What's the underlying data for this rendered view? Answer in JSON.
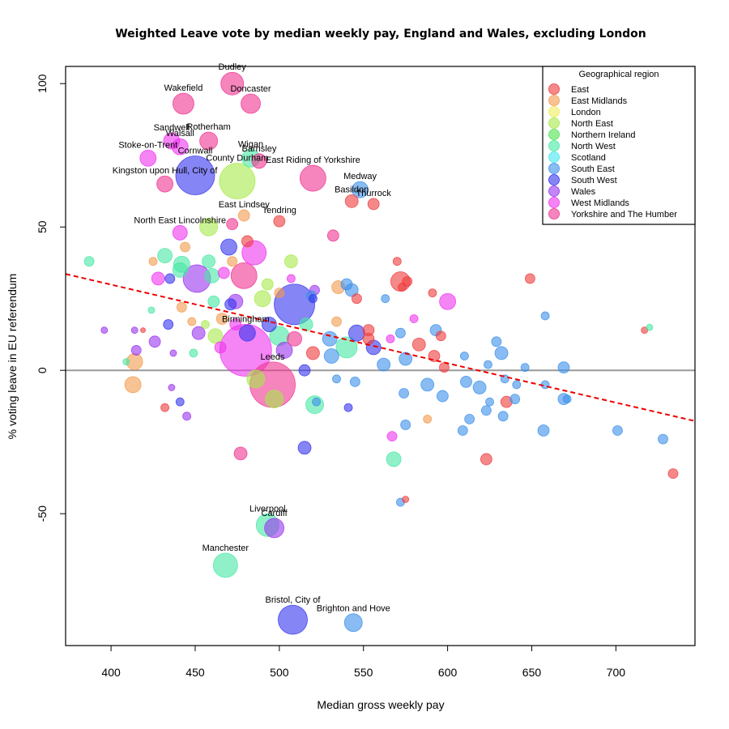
{
  "chart_data": {
    "type": "scatter",
    "title": "Weighted Leave vote by median weekly pay, England and Wales, excluding London",
    "xlabel": "Median gross weekly pay",
    "ylabel": "% voting leave in EU referendum",
    "xlim": [
      373,
      747
    ],
    "ylim": [
      -96,
      106
    ],
    "xticks": [
      400,
      450,
      500,
      550,
      600,
      650,
      700
    ],
    "yticks": [
      -50,
      0,
      50,
      100
    ],
    "zero_line": 0,
    "trend_line": {
      "x": [
        373,
        747
      ],
      "y": [
        33.6,
        -17.7
      ],
      "color": "#ee0000",
      "style": "dashed"
    },
    "legend": {
      "title": "Geographical region",
      "position": "top-right",
      "entries": [
        {
          "name": "East",
          "color": "#ee3b3b"
        },
        {
          "name": "East Midlands",
          "color": "#f39b4c"
        },
        {
          "name": "London",
          "color": "#f0ec5a"
        },
        {
          "name": "North East",
          "color": "#a6ea4a"
        },
        {
          "name": "Northern Ireland",
          "color": "#4fe34f"
        },
        {
          "name": "North West",
          "color": "#46e8a4"
        },
        {
          "name": "Scotland",
          "color": "#44e8ee"
        },
        {
          "name": "South East",
          "color": "#3b8fea"
        },
        {
          "name": "South West",
          "color": "#3434ee"
        },
        {
          "name": "Wales",
          "color": "#9a34ee"
        },
        {
          "name": "West Midlands",
          "color": "#ee34ee"
        },
        {
          "name": "Yorkshire and The Humber",
          "color": "#ee3490"
        }
      ]
    },
    "points": [
      {
        "x": 472,
        "y": 100,
        "r": 14,
        "region": "Yorkshire and The Humber",
        "label": "Dudley"
      },
      {
        "x": 443,
        "y": 93,
        "r": 13,
        "region": "Yorkshire and The Humber",
        "label": "Wakefield"
      },
      {
        "x": 483,
        "y": 93,
        "r": 12,
        "region": "Yorkshire and The Humber",
        "label": "Doncaster"
      },
      {
        "x": 436,
        "y": 80,
        "r": 10,
        "region": "West Midlands",
        "label": "Sandwell"
      },
      {
        "x": 458,
        "y": 80,
        "r": 11,
        "region": "Yorkshire and The Humber",
        "label": "Rotherham"
      },
      {
        "x": 441,
        "y": 78,
        "r": 10,
        "region": "West Midlands",
        "label": "Walsall"
      },
      {
        "x": 422,
        "y": 74,
        "r": 10,
        "region": "West Midlands",
        "label": "Stoke-on-Trent"
      },
      {
        "x": 483,
        "y": 74,
        "r": 11,
        "region": "North West",
        "label": "Wigan"
      },
      {
        "x": 488,
        "y": 73,
        "r": 9,
        "region": "Yorkshire and The Humber",
        "label": "Barnsley"
      },
      {
        "x": 450,
        "y": 68,
        "r": 24,
        "region": "South West",
        "label": "Cornwall"
      },
      {
        "x": 475,
        "y": 66,
        "r": 22,
        "region": "North East",
        "label": "County Durham"
      },
      {
        "x": 520,
        "y": 67,
        "r": 16,
        "region": "Yorkshire and The Humber",
        "label": "East Riding of Yorkshire"
      },
      {
        "x": 432,
        "y": 65,
        "r": 10,
        "region": "Yorkshire and The Humber",
        "label": "Kingston upon Hull, City of"
      },
      {
        "x": 548,
        "y": 63,
        "r": 10,
        "region": "South East",
        "label": "Medway"
      },
      {
        "x": 543,
        "y": 59,
        "r": 8,
        "region": "East",
        "label": "Basildon"
      },
      {
        "x": 556,
        "y": 58,
        "r": 7,
        "region": "East",
        "label": "Thurrock"
      },
      {
        "x": 479,
        "y": 54,
        "r": 7,
        "region": "East Midlands",
        "label": "East Lindsey"
      },
      {
        "x": 500,
        "y": 52,
        "r": 7,
        "region": "East",
        "label": "Tendring"
      },
      {
        "x": 441,
        "y": 48,
        "r": 9,
        "region": "West Midlands",
        "label": "North East Lincolnshire"
      },
      {
        "x": 458,
        "y": 50,
        "r": 11,
        "region": "North East"
      },
      {
        "x": 472,
        "y": 51,
        "r": 7,
        "region": "Yorkshire and The Humber"
      },
      {
        "x": 532,
        "y": 47,
        "r": 7,
        "region": "Yorkshire and The Humber"
      },
      {
        "x": 481,
        "y": 45,
        "r": 7,
        "region": "East"
      },
      {
        "x": 444,
        "y": 43,
        "r": 6,
        "region": "East Midlands"
      },
      {
        "x": 470,
        "y": 43,
        "r": 10,
        "region": "South West"
      },
      {
        "x": 485,
        "y": 41,
        "r": 15,
        "region": "West Midlands"
      },
      {
        "x": 432,
        "y": 40,
        "r": 9,
        "region": "North West"
      },
      {
        "x": 442,
        "y": 37,
        "r": 10,
        "region": "North West"
      },
      {
        "x": 458,
        "y": 38,
        "r": 8,
        "region": "North West"
      },
      {
        "x": 507,
        "y": 38,
        "r": 8,
        "region": "North East"
      },
      {
        "x": 472,
        "y": 38,
        "r": 6,
        "region": "East Midlands"
      },
      {
        "x": 425,
        "y": 38,
        "r": 5,
        "region": "East Midlands"
      },
      {
        "x": 387,
        "y": 38,
        "r": 6,
        "region": "North West"
      },
      {
        "x": 441,
        "y": 35,
        "r": 9,
        "region": "North West"
      },
      {
        "x": 467,
        "y": 34,
        "r": 7,
        "region": "West Midlands"
      },
      {
        "x": 479,
        "y": 33,
        "r": 16,
        "region": "Yorkshire and The Humber"
      },
      {
        "x": 451,
        "y": 32,
        "r": 17,
        "region": "Wales"
      },
      {
        "x": 428,
        "y": 32,
        "r": 8,
        "region": "West Midlands"
      },
      {
        "x": 435,
        "y": 32,
        "r": 6,
        "region": "South West"
      },
      {
        "x": 460,
        "y": 33,
        "r": 9,
        "region": "North West"
      },
      {
        "x": 493,
        "y": 30,
        "r": 7,
        "region": "North East"
      },
      {
        "x": 507,
        "y": 32,
        "r": 5,
        "region": "West Midlands"
      },
      {
        "x": 570,
        "y": 38,
        "r": 5,
        "region": "East"
      },
      {
        "x": 572,
        "y": 31,
        "r": 12,
        "region": "East"
      },
      {
        "x": 576,
        "y": 31,
        "r": 6,
        "region": "East"
      },
      {
        "x": 649,
        "y": 32,
        "r": 6,
        "region": "East"
      },
      {
        "x": 600,
        "y": 24,
        "r": 10,
        "region": "West Midlands"
      },
      {
        "x": 540,
        "y": 30,
        "r": 7,
        "region": "South East"
      },
      {
        "x": 535,
        "y": 29,
        "r": 8,
        "region": "East Midlands"
      },
      {
        "x": 543,
        "y": 28,
        "r": 8,
        "region": "South East"
      },
      {
        "x": 521,
        "y": 28,
        "r": 6,
        "region": "Wales"
      },
      {
        "x": 500,
        "y": 27,
        "r": 6,
        "region": "East Midlands"
      },
      {
        "x": 519,
        "y": 26,
        "r": 6,
        "region": "South East"
      },
      {
        "x": 509,
        "y": 23,
        "r": 25,
        "region": "South West"
      },
      {
        "x": 520,
        "y": 25,
        "r": 5,
        "region": "South West"
      },
      {
        "x": 490,
        "y": 25,
        "r": 10,
        "region": "North East"
      },
      {
        "x": 474,
        "y": 24,
        "r": 9,
        "region": "Wales"
      },
      {
        "x": 461,
        "y": 24,
        "r": 7,
        "region": "North West"
      },
      {
        "x": 442,
        "y": 22,
        "r": 6,
        "region": "East Midlands"
      },
      {
        "x": 424,
        "y": 21,
        "r": 4,
        "region": "North West"
      },
      {
        "x": 471,
        "y": 23,
        "r": 7,
        "region": "South West"
      },
      {
        "x": 546,
        "y": 25,
        "r": 6,
        "region": "East"
      },
      {
        "x": 573,
        "y": 29,
        "r": 5,
        "region": "East"
      },
      {
        "x": 563,
        "y": 25,
        "r": 5,
        "region": "South East"
      },
      {
        "x": 591,
        "y": 27,
        "r": 5,
        "region": "East"
      },
      {
        "x": 658,
        "y": 19,
        "r": 5,
        "region": "South East"
      },
      {
        "x": 580,
        "y": 18,
        "r": 5,
        "region": "West Midlands"
      },
      {
        "x": 534,
        "y": 17,
        "r": 6,
        "region": "East Midlands"
      },
      {
        "x": 466,
        "y": 18,
        "r": 7,
        "region": "East Midlands"
      },
      {
        "x": 448,
        "y": 17,
        "r": 5,
        "region": "East Midlands"
      },
      {
        "x": 434,
        "y": 16,
        "r": 6,
        "region": "South West"
      },
      {
        "x": 456,
        "y": 16,
        "r": 5,
        "region": "North East"
      },
      {
        "x": 474,
        "y": 16,
        "r": 7,
        "region": "West Midlands"
      },
      {
        "x": 494,
        "y": 16,
        "r": 9,
        "region": "South West"
      },
      {
        "x": 516,
        "y": 16,
        "r": 8,
        "region": "North West"
      },
      {
        "x": 546,
        "y": 13,
        "r": 10,
        "region": "South West"
      },
      {
        "x": 553,
        "y": 14,
        "r": 7,
        "region": "East"
      },
      {
        "x": 572,
        "y": 13,
        "r": 6,
        "region": "South East"
      },
      {
        "x": 593,
        "y": 14,
        "r": 7,
        "region": "South East"
      },
      {
        "x": 596,
        "y": 12,
        "r": 6,
        "region": "East"
      },
      {
        "x": 717,
        "y": 14,
        "r": 4,
        "region": "East"
      },
      {
        "x": 720,
        "y": 15,
        "r": 4,
        "region": "North West"
      },
      {
        "x": 414,
        "y": 14,
        "r": 4,
        "region": "Wales"
      },
      {
        "x": 396,
        "y": 14,
        "r": 4,
        "region": "Wales"
      },
      {
        "x": 419,
        "y": 14,
        "r": 3,
        "region": "East"
      },
      {
        "x": 452,
        "y": 13,
        "r": 8,
        "region": "Wales"
      },
      {
        "x": 462,
        "y": 12,
        "r": 9,
        "region": "North East"
      },
      {
        "x": 481,
        "y": 13,
        "r": 10,
        "region": "South West"
      },
      {
        "x": 500,
        "y": 12,
        "r": 12,
        "region": "North West"
      },
      {
        "x": 509,
        "y": 11,
        "r": 9,
        "region": "Yorkshire and The Humber"
      },
      {
        "x": 530,
        "y": 11,
        "r": 9,
        "region": "South East"
      },
      {
        "x": 553,
        "y": 11,
        "r": 7,
        "region": "East"
      },
      {
        "x": 566,
        "y": 11,
        "r": 5,
        "region": "West Midlands"
      },
      {
        "x": 583,
        "y": 9,
        "r": 8,
        "region": "East"
      },
      {
        "x": 610,
        "y": 5,
        "r": 5,
        "region": "South East"
      },
      {
        "x": 629,
        "y": 10,
        "r": 6,
        "region": "South East"
      },
      {
        "x": 632,
        "y": 6,
        "r": 8,
        "region": "South East"
      },
      {
        "x": 426,
        "y": 10,
        "r": 7,
        "region": "Wales"
      },
      {
        "x": 415,
        "y": 7,
        "r": 6,
        "region": "Wales"
      },
      {
        "x": 409,
        "y": 3,
        "r": 4,
        "region": "North West"
      },
      {
        "x": 437,
        "y": 6,
        "r": 4,
        "region": "Wales"
      },
      {
        "x": 449,
        "y": 6,
        "r": 5,
        "region": "North West"
      },
      {
        "x": 465,
        "y": 8,
        "r": 7,
        "region": "West Midlands"
      },
      {
        "x": 480,
        "y": 7,
        "r": 32,
        "region": "West Midlands",
        "label": "Birmingham"
      },
      {
        "x": 503,
        "y": 7,
        "r": 10,
        "region": "Wales"
      },
      {
        "x": 520,
        "y": 6,
        "r": 8,
        "region": "East"
      },
      {
        "x": 531,
        "y": 5,
        "r": 9,
        "region": "South East"
      },
      {
        "x": 540,
        "y": 8,
        "r": 13,
        "region": "North West"
      },
      {
        "x": 556,
        "y": 8,
        "r": 9,
        "region": "South West"
      },
      {
        "x": 562,
        "y": 2,
        "r": 8,
        "region": "South East"
      },
      {
        "x": 575,
        "y": 4,
        "r": 8,
        "region": "South East"
      },
      {
        "x": 592,
        "y": 5,
        "r": 7,
        "region": "East"
      },
      {
        "x": 598,
        "y": 1,
        "r": 6,
        "region": "East"
      },
      {
        "x": 624,
        "y": 2,
        "r": 5,
        "region": "South East"
      },
      {
        "x": 646,
        "y": 1,
        "r": 5,
        "region": "South East"
      },
      {
        "x": 669,
        "y": 1,
        "r": 7,
        "region": "South East"
      },
      {
        "x": 414,
        "y": 3,
        "r": 10,
        "region": "East Midlands"
      },
      {
        "x": 486,
        "y": -3,
        "r": 11,
        "region": "North East"
      },
      {
        "x": 496,
        "y": -5,
        "r": 28,
        "region": "Yorkshire and The Humber",
        "label": "Leeds"
      },
      {
        "x": 515,
        "y": 0,
        "r": 7,
        "region": "South West"
      },
      {
        "x": 534,
        "y": -3,
        "r": 5,
        "region": "South East"
      },
      {
        "x": 545,
        "y": -4,
        "r": 6,
        "region": "South East"
      },
      {
        "x": 574,
        "y": -8,
        "r": 6,
        "region": "South East"
      },
      {
        "x": 588,
        "y": -5,
        "r": 8,
        "region": "South East"
      },
      {
        "x": 597,
        "y": -9,
        "r": 7,
        "region": "South East"
      },
      {
        "x": 611,
        "y": -4,
        "r": 7,
        "region": "South East"
      },
      {
        "x": 619,
        "y": -6,
        "r": 8,
        "region": "South East"
      },
      {
        "x": 634,
        "y": -3,
        "r": 5,
        "region": "South East"
      },
      {
        "x": 641,
        "y": -5,
        "r": 5,
        "region": "South East"
      },
      {
        "x": 658,
        "y": -5,
        "r": 5,
        "region": "South East"
      },
      {
        "x": 413,
        "y": -5,
        "r": 10,
        "region": "East Midlands"
      },
      {
        "x": 436,
        "y": -6,
        "r": 4,
        "region": "Wales"
      },
      {
        "x": 441,
        "y": -11,
        "r": 5,
        "region": "South West"
      },
      {
        "x": 432,
        "y": -13,
        "r": 5,
        "region": "East"
      },
      {
        "x": 445,
        "y": -16,
        "r": 5,
        "region": "Wales"
      },
      {
        "x": 497,
        "y": -10,
        "r": 11,
        "region": "North East"
      },
      {
        "x": 521,
        "y": -12,
        "r": 11,
        "region": "North West"
      },
      {
        "x": 522,
        "y": -11,
        "r": 5,
        "region": "South East"
      },
      {
        "x": 541,
        "y": -13,
        "r": 5,
        "region": "South West"
      },
      {
        "x": 588,
        "y": -17,
        "r": 5,
        "region": "East Midlands"
      },
      {
        "x": 575,
        "y": -19,
        "r": 6,
        "region": "South East"
      },
      {
        "x": 613,
        "y": -17,
        "r": 6,
        "region": "South East"
      },
      {
        "x": 623,
        "y": -14,
        "r": 6,
        "region": "South East"
      },
      {
        "x": 625,
        "y": -11,
        "r": 5,
        "region": "South East"
      },
      {
        "x": 633,
        "y": -16,
        "r": 6,
        "region": "South East"
      },
      {
        "x": 635,
        "y": -11,
        "r": 7,
        "region": "East"
      },
      {
        "x": 640,
        "y": -10,
        "r": 6,
        "region": "South East"
      },
      {
        "x": 669,
        "y": -10,
        "r": 7,
        "region": "South East"
      },
      {
        "x": 671,
        "y": -10,
        "r": 5,
        "region": "South East"
      },
      {
        "x": 609,
        "y": -21,
        "r": 6,
        "region": "South East"
      },
      {
        "x": 657,
        "y": -21,
        "r": 7,
        "region": "South East"
      },
      {
        "x": 701,
        "y": -21,
        "r": 6,
        "region": "South East"
      },
      {
        "x": 728,
        "y": -24,
        "r": 6,
        "region": "South East"
      },
      {
        "x": 567,
        "y": -23,
        "r": 6,
        "region": "West Midlands"
      },
      {
        "x": 515,
        "y": -27,
        "r": 8,
        "region": "South West"
      },
      {
        "x": 477,
        "y": -29,
        "r": 8,
        "region": "Yorkshire and The Humber"
      },
      {
        "x": 568,
        "y": -31,
        "r": 9,
        "region": "North West"
      },
      {
        "x": 623,
        "y": -31,
        "r": 7,
        "region": "East"
      },
      {
        "x": 734,
        "y": -36,
        "r": 6,
        "region": "East"
      },
      {
        "x": 572,
        "y": -46,
        "r": 5,
        "region": "South East"
      },
      {
        "x": 575,
        "y": -45,
        "r": 4,
        "region": "East"
      },
      {
        "x": 493,
        "y": -54,
        "r": 14,
        "region": "North West",
        "label": "Liverpool"
      },
      {
        "x": 497,
        "y": -55,
        "r": 12,
        "region": "Wales",
        "label": "Cardiff"
      },
      {
        "x": 468,
        "y": -68,
        "r": 15,
        "region": "North West",
        "label": "Manchester"
      },
      {
        "x": 508,
        "y": -87,
        "r": 18,
        "region": "South West",
        "label": "Bristol, City of"
      },
      {
        "x": 544,
        "y": -88,
        "r": 11,
        "region": "South East",
        "label": "Brighton and Hove"
      }
    ]
  }
}
